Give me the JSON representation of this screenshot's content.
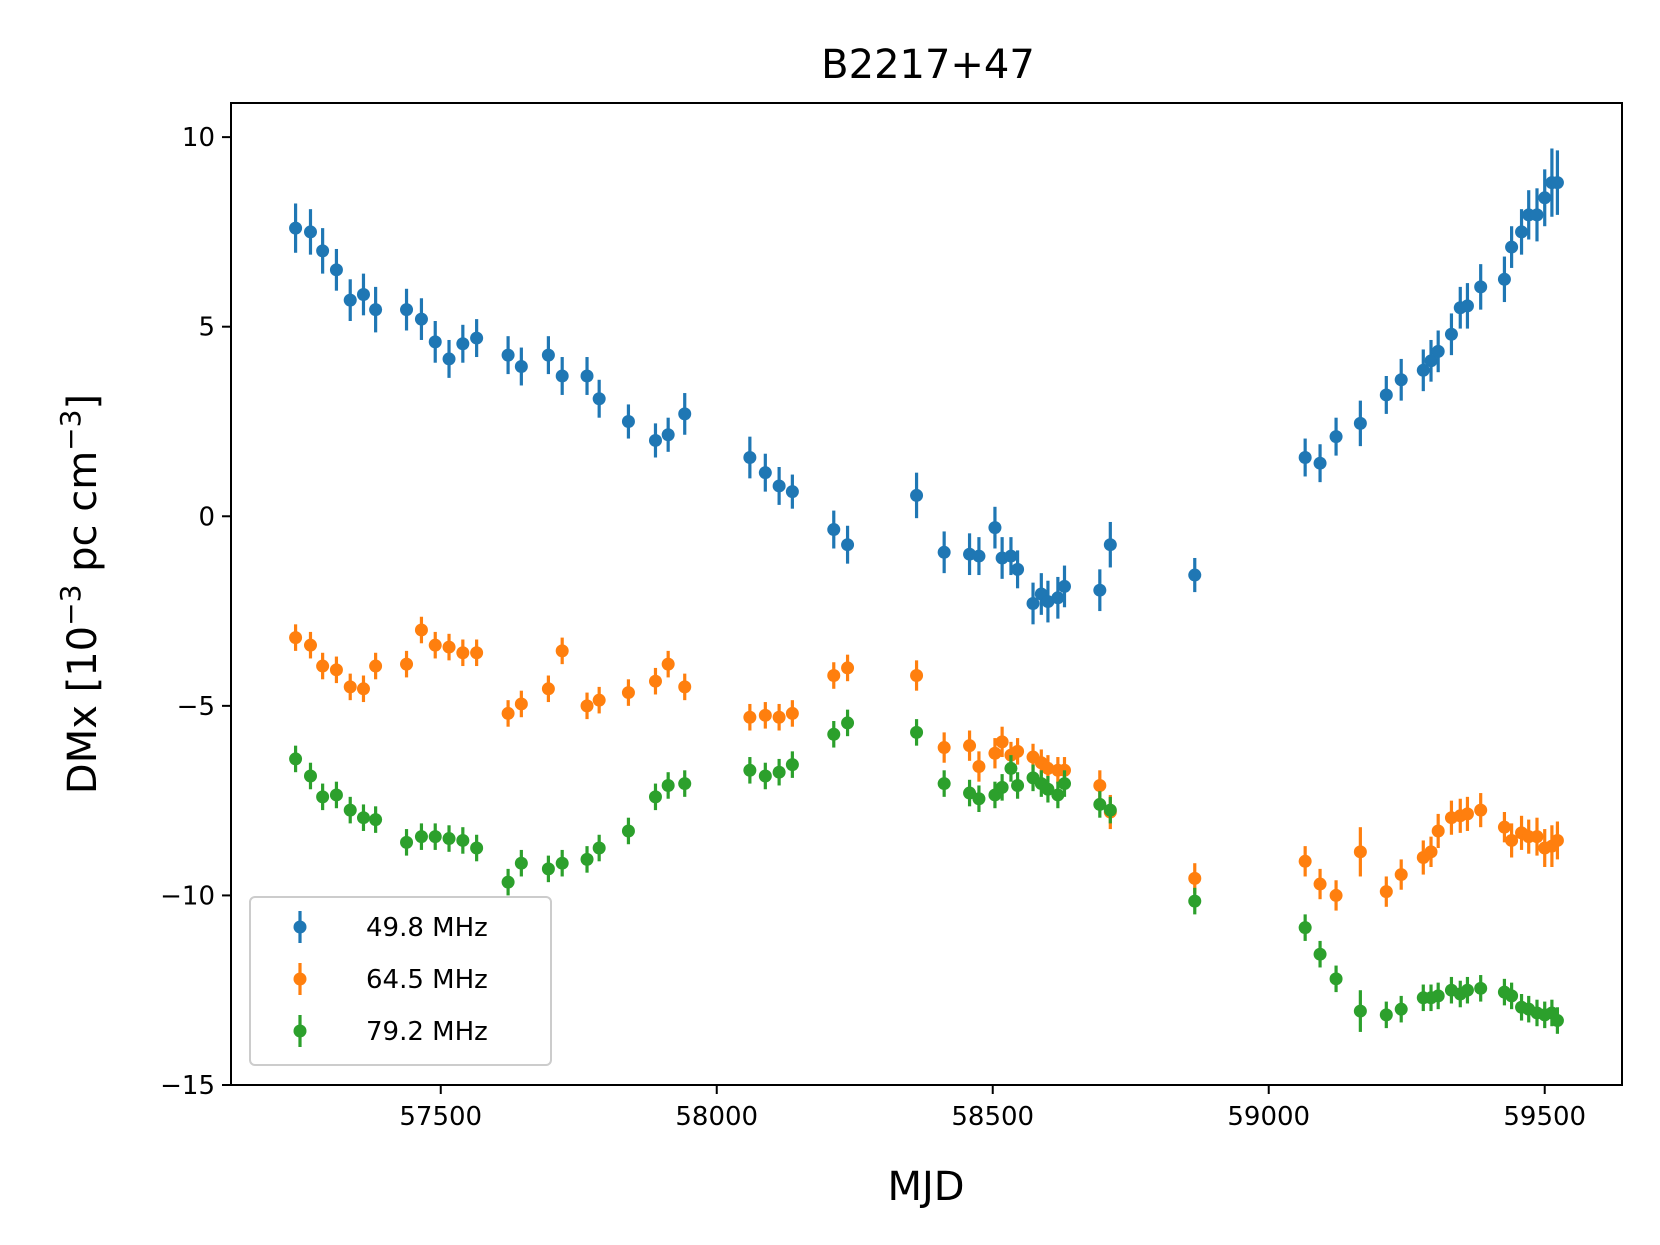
{
  "chart_data": {
    "type": "scatter",
    "title": "B2217+47",
    "xlabel": "MJD",
    "ylabel": {
      "prefix": "DMx [10",
      "exp1": "−3",
      "middle": " pc cm",
      "exp2": "−3",
      "suffix": "]"
    },
    "xlim": [
      57120,
      59640
    ],
    "ylim": [
      -15,
      10.9
    ],
    "xticks": [
      {
        "value": 57500,
        "label": "57500"
      },
      {
        "value": 58000,
        "label": "58000"
      },
      {
        "value": 58500,
        "label": "58500"
      },
      {
        "value": 59000,
        "label": "59000"
      },
      {
        "value": 59500,
        "label": "59500"
      }
    ],
    "yticks": [
      {
        "value": 10,
        "label": "10"
      },
      {
        "value": 5,
        "label": "5"
      },
      {
        "value": 0,
        "label": "0"
      },
      {
        "value": -5,
        "label": "−5"
      },
      {
        "value": -10,
        "label": "−10"
      },
      {
        "value": -15,
        "label": "−15"
      }
    ],
    "legend_position": "lower-left",
    "grid": false,
    "series": [
      {
        "name": "49.8 MHz",
        "color": "#1f77b4",
        "points": [
          [
            57237,
            7.6,
            0.65
          ],
          [
            57264,
            7.5,
            0.6
          ],
          [
            57286,
            7.0,
            0.6
          ],
          [
            57311,
            6.5,
            0.55
          ],
          [
            57336,
            5.7,
            0.55
          ],
          [
            57360,
            5.85,
            0.55
          ],
          [
            57382,
            5.45,
            0.6
          ],
          [
            57438,
            5.45,
            0.55
          ],
          [
            57465,
            5.2,
            0.55
          ],
          [
            57490,
            4.6,
            0.55
          ],
          [
            57515,
            4.15,
            0.5
          ],
          [
            57540,
            4.55,
            0.5
          ],
          [
            57565,
            4.7,
            0.5
          ],
          [
            57622,
            4.25,
            0.5
          ],
          [
            57646,
            3.95,
            0.5
          ],
          [
            57695,
            4.25,
            0.5
          ],
          [
            57720,
            3.7,
            0.5
          ],
          [
            57765,
            3.7,
            0.5
          ],
          [
            57787,
            3.1,
            0.5
          ],
          [
            57840,
            2.5,
            0.45
          ],
          [
            57889,
            2.0,
            0.45
          ],
          [
            57912,
            2.15,
            0.45
          ],
          [
            57942,
            2.7,
            0.55
          ],
          [
            58060,
            1.55,
            0.55
          ],
          [
            58088,
            1.15,
            0.5
          ],
          [
            58113,
            0.8,
            0.5
          ],
          [
            58137,
            0.65,
            0.45
          ],
          [
            58212,
            -0.35,
            0.5
          ],
          [
            58237,
            -0.75,
            0.5
          ],
          [
            58362,
            0.55,
            0.6
          ],
          [
            58412,
            -0.95,
            0.55
          ],
          [
            58458,
            -1.0,
            0.55
          ],
          [
            58475,
            -1.05,
            0.5
          ],
          [
            58504,
            -0.3,
            0.55
          ],
          [
            58517,
            -1.1,
            0.55
          ],
          [
            58533,
            -1.05,
            0.5
          ],
          [
            58545,
            -1.4,
            0.5
          ],
          [
            58573,
            -2.3,
            0.55
          ],
          [
            58588,
            -2.05,
            0.55
          ],
          [
            58600,
            -2.25,
            0.55
          ],
          [
            58618,
            -2.15,
            0.55
          ],
          [
            58630,
            -1.85,
            0.55
          ],
          [
            58694,
            -1.95,
            0.55
          ],
          [
            58713,
            -0.75,
            0.6
          ],
          [
            58866,
            -1.55,
            0.45
          ],
          [
            59066,
            1.55,
            0.5
          ],
          [
            59093,
            1.4,
            0.5
          ],
          [
            59122,
            2.1,
            0.5
          ],
          [
            59166,
            2.45,
            0.6
          ],
          [
            59213,
            3.2,
            0.5
          ],
          [
            59240,
            3.6,
            0.55
          ],
          [
            59280,
            3.85,
            0.55
          ],
          [
            59294,
            4.1,
            0.55
          ],
          [
            59307,
            4.35,
            0.55
          ],
          [
            59331,
            4.8,
            0.55
          ],
          [
            59347,
            5.5,
            0.55
          ],
          [
            59360,
            5.55,
            0.6
          ],
          [
            59384,
            6.05,
            0.6
          ],
          [
            59427,
            6.25,
            0.6
          ],
          [
            59440,
            7.1,
            0.55
          ],
          [
            59458,
            7.5,
            0.6
          ],
          [
            59471,
            7.95,
            0.65
          ],
          [
            59486,
            7.95,
            0.7
          ],
          [
            59500,
            8.4,
            0.75
          ],
          [
            59513,
            8.8,
            0.9
          ],
          [
            59523,
            8.8,
            0.85
          ]
        ]
      },
      {
        "name": "64.5 MHz",
        "color": "#ff7f0e",
        "points": [
          [
            57237,
            -3.2,
            0.35
          ],
          [
            57264,
            -3.4,
            0.35
          ],
          [
            57286,
            -3.95,
            0.35
          ],
          [
            57311,
            -4.05,
            0.35
          ],
          [
            57336,
            -4.5,
            0.35
          ],
          [
            57360,
            -4.55,
            0.35
          ],
          [
            57382,
            -3.95,
            0.35
          ],
          [
            57438,
            -3.9,
            0.35
          ],
          [
            57465,
            -3.0,
            0.35
          ],
          [
            57490,
            -3.4,
            0.35
          ],
          [
            57515,
            -3.45,
            0.35
          ],
          [
            57540,
            -3.6,
            0.35
          ],
          [
            57565,
            -3.6,
            0.35
          ],
          [
            57622,
            -5.2,
            0.35
          ],
          [
            57646,
            -4.95,
            0.35
          ],
          [
            57695,
            -4.55,
            0.35
          ],
          [
            57720,
            -3.55,
            0.35
          ],
          [
            57765,
            -5.0,
            0.35
          ],
          [
            57787,
            -4.85,
            0.35
          ],
          [
            57840,
            -4.65,
            0.35
          ],
          [
            57889,
            -4.35,
            0.35
          ],
          [
            57912,
            -3.9,
            0.35
          ],
          [
            57942,
            -4.5,
            0.35
          ],
          [
            58060,
            -5.3,
            0.35
          ],
          [
            58088,
            -5.25,
            0.35
          ],
          [
            58113,
            -5.3,
            0.35
          ],
          [
            58137,
            -5.2,
            0.35
          ],
          [
            58212,
            -4.2,
            0.35
          ],
          [
            58237,
            -4.0,
            0.35
          ],
          [
            58362,
            -4.2,
            0.4
          ],
          [
            58412,
            -6.1,
            0.4
          ],
          [
            58458,
            -6.05,
            0.4
          ],
          [
            58475,
            -6.6,
            0.4
          ],
          [
            58504,
            -6.25,
            0.4
          ],
          [
            58517,
            -5.95,
            0.4
          ],
          [
            58533,
            -6.3,
            0.35
          ],
          [
            58545,
            -6.2,
            0.35
          ],
          [
            58573,
            -6.35,
            0.35
          ],
          [
            58588,
            -6.5,
            0.35
          ],
          [
            58600,
            -6.65,
            0.35
          ],
          [
            58618,
            -6.7,
            0.35
          ],
          [
            58630,
            -6.7,
            0.35
          ],
          [
            58694,
            -7.1,
            0.4
          ],
          [
            58713,
            -7.8,
            0.45
          ],
          [
            58866,
            -9.55,
            0.4
          ],
          [
            59066,
            -9.1,
            0.4
          ],
          [
            59093,
            -9.7,
            0.4
          ],
          [
            59122,
            -10.0,
            0.4
          ],
          [
            59166,
            -8.85,
            0.65
          ],
          [
            59213,
            -9.9,
            0.4
          ],
          [
            59240,
            -9.45,
            0.4
          ],
          [
            59280,
            -9.0,
            0.45
          ],
          [
            59294,
            -8.85,
            0.4
          ],
          [
            59307,
            -8.3,
            0.45
          ],
          [
            59331,
            -7.95,
            0.45
          ],
          [
            59347,
            -7.9,
            0.45
          ],
          [
            59360,
            -7.85,
            0.45
          ],
          [
            59384,
            -7.75,
            0.45
          ],
          [
            59427,
            -8.2,
            0.4
          ],
          [
            59440,
            -8.55,
            0.45
          ],
          [
            59458,
            -8.35,
            0.45
          ],
          [
            59471,
            -8.45,
            0.45
          ],
          [
            59486,
            -8.45,
            0.5
          ],
          [
            59500,
            -8.75,
            0.5
          ],
          [
            59513,
            -8.7,
            0.55
          ],
          [
            59523,
            -8.55,
            0.5
          ]
        ]
      },
      {
        "name": "79.2 MHz",
        "color": "#2ca02c",
        "points": [
          [
            57237,
            -6.4,
            0.35
          ],
          [
            57264,
            -6.85,
            0.35
          ],
          [
            57286,
            -7.4,
            0.35
          ],
          [
            57311,
            -7.35,
            0.35
          ],
          [
            57336,
            -7.75,
            0.35
          ],
          [
            57360,
            -7.95,
            0.35
          ],
          [
            57382,
            -8.0,
            0.35
          ],
          [
            57438,
            -8.6,
            0.35
          ],
          [
            57465,
            -8.45,
            0.35
          ],
          [
            57490,
            -8.45,
            0.35
          ],
          [
            57515,
            -8.5,
            0.35
          ],
          [
            57540,
            -8.55,
            0.35
          ],
          [
            57565,
            -8.75,
            0.35
          ],
          [
            57622,
            -9.65,
            0.35
          ],
          [
            57646,
            -9.15,
            0.35
          ],
          [
            57695,
            -9.3,
            0.35
          ],
          [
            57720,
            -9.15,
            0.35
          ],
          [
            57765,
            -9.05,
            0.35
          ],
          [
            57787,
            -8.75,
            0.35
          ],
          [
            57840,
            -8.3,
            0.35
          ],
          [
            57889,
            -7.4,
            0.35
          ],
          [
            57912,
            -7.1,
            0.35
          ],
          [
            57942,
            -7.05,
            0.35
          ],
          [
            58060,
            -6.7,
            0.35
          ],
          [
            58088,
            -6.85,
            0.35
          ],
          [
            58113,
            -6.75,
            0.35
          ],
          [
            58137,
            -6.55,
            0.35
          ],
          [
            58212,
            -5.75,
            0.35
          ],
          [
            58237,
            -5.45,
            0.35
          ],
          [
            58362,
            -5.7,
            0.35
          ],
          [
            58412,
            -7.05,
            0.35
          ],
          [
            58458,
            -7.3,
            0.35
          ],
          [
            58475,
            -7.45,
            0.35
          ],
          [
            58504,
            -7.35,
            0.35
          ],
          [
            58517,
            -7.15,
            0.35
          ],
          [
            58533,
            -6.65,
            0.35
          ],
          [
            58545,
            -7.1,
            0.35
          ],
          [
            58573,
            -6.9,
            0.35
          ],
          [
            58588,
            -7.05,
            0.35
          ],
          [
            58600,
            -7.2,
            0.35
          ],
          [
            58618,
            -7.35,
            0.35
          ],
          [
            58630,
            -7.05,
            0.35
          ],
          [
            58694,
            -7.6,
            0.35
          ],
          [
            58713,
            -7.75,
            0.35
          ],
          [
            58866,
            -10.15,
            0.35
          ],
          [
            59066,
            -10.85,
            0.35
          ],
          [
            59093,
            -11.55,
            0.35
          ],
          [
            59122,
            -12.2,
            0.35
          ],
          [
            59166,
            -13.05,
            0.55
          ],
          [
            59213,
            -13.15,
            0.35
          ],
          [
            59240,
            -13.0,
            0.35
          ],
          [
            59280,
            -12.7,
            0.35
          ],
          [
            59294,
            -12.7,
            0.35
          ],
          [
            59307,
            -12.65,
            0.35
          ],
          [
            59331,
            -12.5,
            0.35
          ],
          [
            59347,
            -12.6,
            0.35
          ],
          [
            59360,
            -12.5,
            0.35
          ],
          [
            59384,
            -12.45,
            0.35
          ],
          [
            59427,
            -12.55,
            0.35
          ],
          [
            59440,
            -12.65,
            0.35
          ],
          [
            59458,
            -12.95,
            0.35
          ],
          [
            59471,
            -13.0,
            0.35
          ],
          [
            59486,
            -13.1,
            0.35
          ],
          [
            59500,
            -13.15,
            0.35
          ],
          [
            59513,
            -13.1,
            0.35
          ],
          [
            59523,
            -13.3,
            0.35
          ]
        ]
      }
    ]
  }
}
